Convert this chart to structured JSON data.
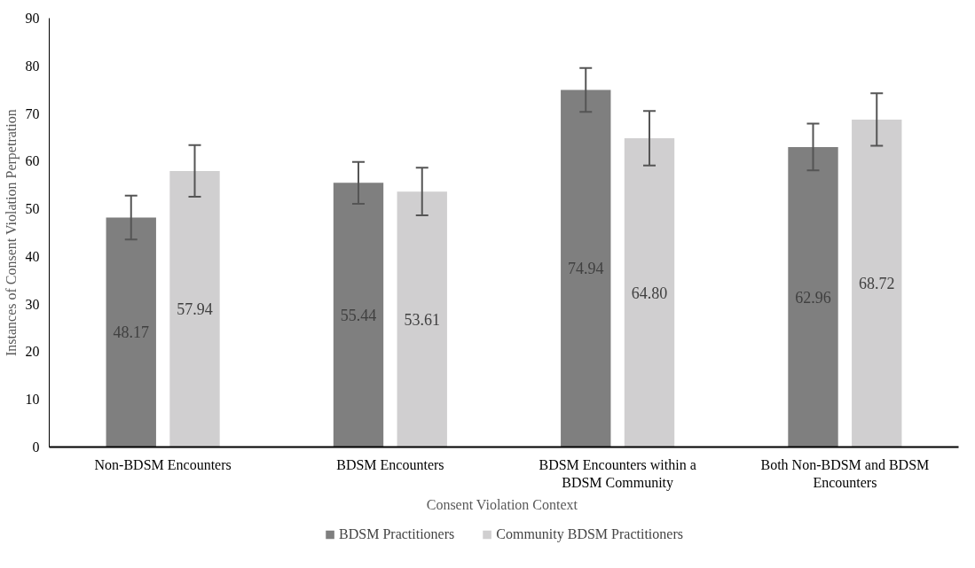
{
  "chart_data": {
    "type": "bar",
    "xlabel": "Consent  Violation Context",
    "ylabel": "Instances of Consent Violation Perpetration",
    "categories": [
      "Non-BDSM Encounters",
      "BDSM Encounters",
      "BDSM Encounters within a BDSM Community",
      "Both Non-BDSM and BDSM Encounters"
    ],
    "series": [
      {
        "name": "BDSM Practitioners",
        "color": "#7f7f7f",
        "values": [
          48.17,
          55.44,
          74.94,
          62.96
        ],
        "value_labels": [
          "48.17",
          "55.44",
          "74.94",
          "62.96"
        ],
        "errors": [
          4.6,
          4.4,
          4.6,
          4.9
        ]
      },
      {
        "name": "Community BDSM Practitioners",
        "color": "#d0cfd0",
        "values": [
          57.94,
          53.61,
          64.8,
          68.72
        ],
        "value_labels": [
          "57.94",
          "53.61",
          "64.80",
          "68.72"
        ],
        "errors": [
          5.4,
          5.0,
          5.7,
          5.5
        ]
      }
    ],
    "ylim": [
      0,
      90
    ],
    "yticks": [
      0,
      10,
      20,
      30,
      40,
      50,
      60,
      70,
      80,
      90
    ],
    "grid": false,
    "legend": "bottom"
  }
}
